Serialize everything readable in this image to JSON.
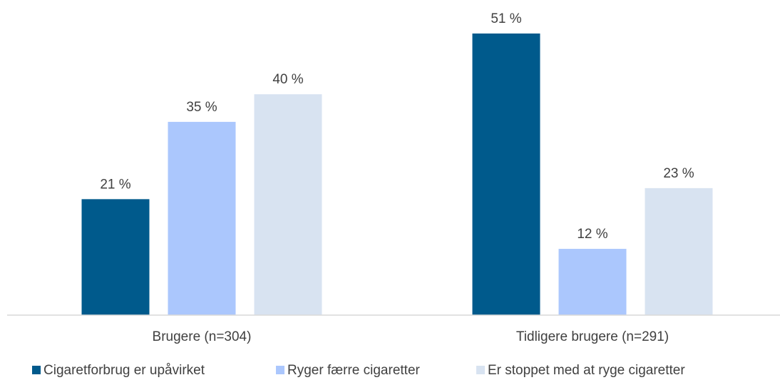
{
  "chart_data": {
    "type": "bar",
    "categories": [
      "Brugere (n=304)",
      "Tidligere brugere (n=291)"
    ],
    "series": [
      {
        "name": "Cigaretforbrug er upåvirket",
        "values": [
          21,
          51
        ],
        "labels": [
          "21 %",
          "51 %"
        ],
        "color": "#005a8c"
      },
      {
        "name": "Ryger færre cigaretter",
        "values": [
          35,
          12
        ],
        "labels": [
          "35 %",
          "12 %"
        ],
        "color": "#abc7fd"
      },
      {
        "name": "Er stoppet med at ryge cigaretter",
        "values": [
          40,
          23
        ],
        "labels": [
          "40 %",
          "23 %"
        ],
        "color": "#d8e3f1"
      }
    ],
    "ylim": [
      0,
      51
    ],
    "grid": false,
    "legend_position": "bottom",
    "axis_color": "#d9d9d9"
  }
}
